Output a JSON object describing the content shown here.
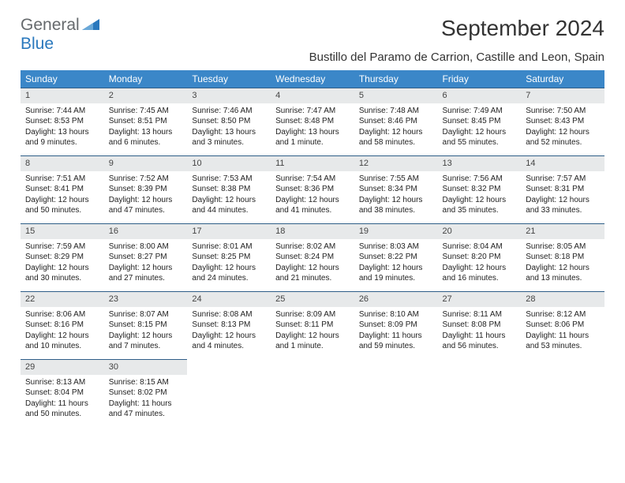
{
  "logo": {
    "text_gray": "General",
    "text_blue": "Blue"
  },
  "title": "September 2024",
  "location": "Bustillo del Paramo de Carrion, Castille and Leon, Spain",
  "colors": {
    "header_bg": "#3b87c8",
    "header_text": "#ffffff",
    "daynum_bg": "#e7e9ea",
    "daynum_border": "#2f5e88",
    "logo_gray": "#666a6d",
    "logo_blue": "#2a78bd",
    "body_bg": "#ffffff"
  },
  "weekdays": [
    "Sunday",
    "Monday",
    "Tuesday",
    "Wednesday",
    "Thursday",
    "Friday",
    "Saturday"
  ],
  "days": [
    {
      "n": "1",
      "sunrise": "Sunrise: 7:44 AM",
      "sunset": "Sunset: 8:53 PM",
      "daylight": "Daylight: 13 hours and 9 minutes."
    },
    {
      "n": "2",
      "sunrise": "Sunrise: 7:45 AM",
      "sunset": "Sunset: 8:51 PM",
      "daylight": "Daylight: 13 hours and 6 minutes."
    },
    {
      "n": "3",
      "sunrise": "Sunrise: 7:46 AM",
      "sunset": "Sunset: 8:50 PM",
      "daylight": "Daylight: 13 hours and 3 minutes."
    },
    {
      "n": "4",
      "sunrise": "Sunrise: 7:47 AM",
      "sunset": "Sunset: 8:48 PM",
      "daylight": "Daylight: 13 hours and 1 minute."
    },
    {
      "n": "5",
      "sunrise": "Sunrise: 7:48 AM",
      "sunset": "Sunset: 8:46 PM",
      "daylight": "Daylight: 12 hours and 58 minutes."
    },
    {
      "n": "6",
      "sunrise": "Sunrise: 7:49 AM",
      "sunset": "Sunset: 8:45 PM",
      "daylight": "Daylight: 12 hours and 55 minutes."
    },
    {
      "n": "7",
      "sunrise": "Sunrise: 7:50 AM",
      "sunset": "Sunset: 8:43 PM",
      "daylight": "Daylight: 12 hours and 52 minutes."
    },
    {
      "n": "8",
      "sunrise": "Sunrise: 7:51 AM",
      "sunset": "Sunset: 8:41 PM",
      "daylight": "Daylight: 12 hours and 50 minutes."
    },
    {
      "n": "9",
      "sunrise": "Sunrise: 7:52 AM",
      "sunset": "Sunset: 8:39 PM",
      "daylight": "Daylight: 12 hours and 47 minutes."
    },
    {
      "n": "10",
      "sunrise": "Sunrise: 7:53 AM",
      "sunset": "Sunset: 8:38 PM",
      "daylight": "Daylight: 12 hours and 44 minutes."
    },
    {
      "n": "11",
      "sunrise": "Sunrise: 7:54 AM",
      "sunset": "Sunset: 8:36 PM",
      "daylight": "Daylight: 12 hours and 41 minutes."
    },
    {
      "n": "12",
      "sunrise": "Sunrise: 7:55 AM",
      "sunset": "Sunset: 8:34 PM",
      "daylight": "Daylight: 12 hours and 38 minutes."
    },
    {
      "n": "13",
      "sunrise": "Sunrise: 7:56 AM",
      "sunset": "Sunset: 8:32 PM",
      "daylight": "Daylight: 12 hours and 35 minutes."
    },
    {
      "n": "14",
      "sunrise": "Sunrise: 7:57 AM",
      "sunset": "Sunset: 8:31 PM",
      "daylight": "Daylight: 12 hours and 33 minutes."
    },
    {
      "n": "15",
      "sunrise": "Sunrise: 7:59 AM",
      "sunset": "Sunset: 8:29 PM",
      "daylight": "Daylight: 12 hours and 30 minutes."
    },
    {
      "n": "16",
      "sunrise": "Sunrise: 8:00 AM",
      "sunset": "Sunset: 8:27 PM",
      "daylight": "Daylight: 12 hours and 27 minutes."
    },
    {
      "n": "17",
      "sunrise": "Sunrise: 8:01 AM",
      "sunset": "Sunset: 8:25 PM",
      "daylight": "Daylight: 12 hours and 24 minutes."
    },
    {
      "n": "18",
      "sunrise": "Sunrise: 8:02 AM",
      "sunset": "Sunset: 8:24 PM",
      "daylight": "Daylight: 12 hours and 21 minutes."
    },
    {
      "n": "19",
      "sunrise": "Sunrise: 8:03 AM",
      "sunset": "Sunset: 8:22 PM",
      "daylight": "Daylight: 12 hours and 19 minutes."
    },
    {
      "n": "20",
      "sunrise": "Sunrise: 8:04 AM",
      "sunset": "Sunset: 8:20 PM",
      "daylight": "Daylight: 12 hours and 16 minutes."
    },
    {
      "n": "21",
      "sunrise": "Sunrise: 8:05 AM",
      "sunset": "Sunset: 8:18 PM",
      "daylight": "Daylight: 12 hours and 13 minutes."
    },
    {
      "n": "22",
      "sunrise": "Sunrise: 8:06 AM",
      "sunset": "Sunset: 8:16 PM",
      "daylight": "Daylight: 12 hours and 10 minutes."
    },
    {
      "n": "23",
      "sunrise": "Sunrise: 8:07 AM",
      "sunset": "Sunset: 8:15 PM",
      "daylight": "Daylight: 12 hours and 7 minutes."
    },
    {
      "n": "24",
      "sunrise": "Sunrise: 8:08 AM",
      "sunset": "Sunset: 8:13 PM",
      "daylight": "Daylight: 12 hours and 4 minutes."
    },
    {
      "n": "25",
      "sunrise": "Sunrise: 8:09 AM",
      "sunset": "Sunset: 8:11 PM",
      "daylight": "Daylight: 12 hours and 1 minute."
    },
    {
      "n": "26",
      "sunrise": "Sunrise: 8:10 AM",
      "sunset": "Sunset: 8:09 PM",
      "daylight": "Daylight: 11 hours and 59 minutes."
    },
    {
      "n": "27",
      "sunrise": "Sunrise: 8:11 AM",
      "sunset": "Sunset: 8:08 PM",
      "daylight": "Daylight: 11 hours and 56 minutes."
    },
    {
      "n": "28",
      "sunrise": "Sunrise: 8:12 AM",
      "sunset": "Sunset: 8:06 PM",
      "daylight": "Daylight: 11 hours and 53 minutes."
    },
    {
      "n": "29",
      "sunrise": "Sunrise: 8:13 AM",
      "sunset": "Sunset: 8:04 PM",
      "daylight": "Daylight: 11 hours and 50 minutes."
    },
    {
      "n": "30",
      "sunrise": "Sunrise: 8:15 AM",
      "sunset": "Sunset: 8:02 PM",
      "daylight": "Daylight: 11 hours and 47 minutes."
    }
  ]
}
